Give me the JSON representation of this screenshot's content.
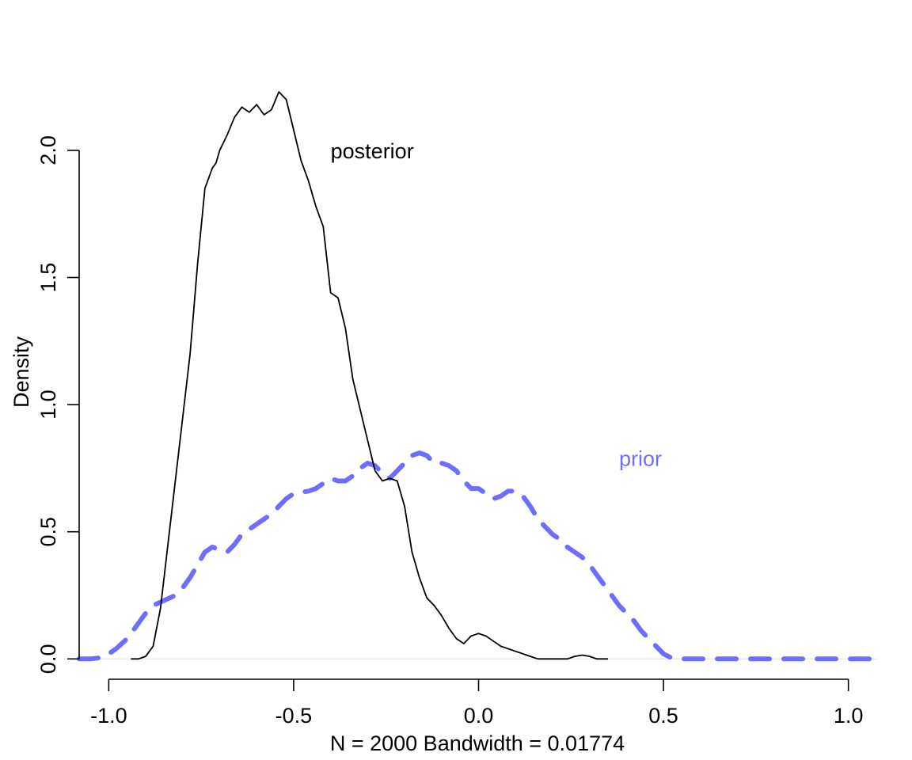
{
  "chart_data": {
    "type": "line",
    "title": "",
    "xlabel": "N = 2000   Bandwidth = 0.01774",
    "ylabel": "Density",
    "xlim": [
      -1.08,
      1.08
    ],
    "ylim": [
      -0.08,
      2.28
    ],
    "x_ticks": [
      -1.0,
      -0.5,
      0.0,
      0.5,
      1.0
    ],
    "x_tick_labels": [
      "-1.0",
      "-0.5",
      "0.0",
      "0.5",
      "1.0"
    ],
    "y_ticks": [
      0.0,
      0.5,
      1.0,
      1.5,
      2.0
    ],
    "y_tick_labels": [
      "0.0",
      "0.5",
      "1.0",
      "1.5",
      "2.0"
    ],
    "grid": false,
    "baseline": {
      "y": 0,
      "x": [
        -1.08,
        1.08
      ],
      "color": "#e6e6e6"
    },
    "series": [
      {
        "name": "posterior",
        "color": "#000000",
        "dashed": false,
        "label": {
          "text": "posterior",
          "x": -0.4,
          "y": 2.0,
          "anchor": "start"
        },
        "x": [
          -0.94,
          -0.92,
          -0.9,
          -0.88,
          -0.86,
          -0.84,
          -0.82,
          -0.8,
          -0.78,
          -0.76,
          -0.74,
          -0.72,
          -0.71,
          -0.7,
          -0.68,
          -0.66,
          -0.64,
          -0.62,
          -0.6,
          -0.58,
          -0.56,
          -0.54,
          -0.52,
          -0.5,
          -0.48,
          -0.46,
          -0.44,
          -0.42,
          -0.4,
          -0.38,
          -0.36,
          -0.34,
          -0.32,
          -0.3,
          -0.28,
          -0.26,
          -0.24,
          -0.22,
          -0.2,
          -0.18,
          -0.16,
          -0.14,
          -0.12,
          -0.1,
          -0.08,
          -0.06,
          -0.04,
          -0.02,
          0.0,
          0.02,
          0.04,
          0.06,
          0.08,
          0.1,
          0.12,
          0.14,
          0.16,
          0.18,
          0.2,
          0.22,
          0.24,
          0.26,
          0.28,
          0.3,
          0.32,
          0.35
        ],
        "y": [
          0.0,
          0.0,
          0.01,
          0.05,
          0.2,
          0.45,
          0.7,
          0.95,
          1.2,
          1.55,
          1.85,
          1.93,
          1.95,
          2.0,
          2.06,
          2.13,
          2.17,
          2.15,
          2.18,
          2.14,
          2.16,
          2.23,
          2.2,
          2.08,
          1.96,
          1.88,
          1.78,
          1.7,
          1.44,
          1.42,
          1.3,
          1.1,
          0.98,
          0.86,
          0.74,
          0.7,
          0.71,
          0.7,
          0.6,
          0.42,
          0.32,
          0.24,
          0.21,
          0.17,
          0.12,
          0.08,
          0.06,
          0.09,
          0.1,
          0.09,
          0.07,
          0.05,
          0.04,
          0.03,
          0.02,
          0.01,
          0.0,
          0.0,
          0.0,
          0.0,
          0.0,
          0.01,
          0.015,
          0.01,
          0.0,
          0.0
        ]
      },
      {
        "name": "prior",
        "color": "#6d6dff",
        "dashed": true,
        "label": {
          "text": "prior",
          "x": 0.38,
          "y": 0.79,
          "anchor": "start"
        },
        "x": [
          -1.08,
          -1.05,
          -1.02,
          -1.0,
          -0.98,
          -0.95,
          -0.92,
          -0.9,
          -0.88,
          -0.85,
          -0.82,
          -0.8,
          -0.78,
          -0.76,
          -0.74,
          -0.72,
          -0.7,
          -0.68,
          -0.66,
          -0.64,
          -0.62,
          -0.6,
          -0.58,
          -0.56,
          -0.54,
          -0.52,
          -0.5,
          -0.48,
          -0.46,
          -0.44,
          -0.42,
          -0.4,
          -0.38,
          -0.36,
          -0.34,
          -0.32,
          -0.3,
          -0.28,
          -0.26,
          -0.24,
          -0.22,
          -0.2,
          -0.18,
          -0.16,
          -0.14,
          -0.12,
          -0.1,
          -0.08,
          -0.06,
          -0.04,
          -0.02,
          0.0,
          0.02,
          0.04,
          0.06,
          0.08,
          0.1,
          0.12,
          0.14,
          0.16,
          0.18,
          0.2,
          0.22,
          0.24,
          0.26,
          0.28,
          0.3,
          0.32,
          0.34,
          0.36,
          0.38,
          0.4,
          0.42,
          0.44,
          0.46,
          0.48,
          0.5,
          0.52,
          0.54,
          0.56,
          0.58,
          0.6,
          0.62,
          0.64,
          0.66,
          0.68,
          0.7,
          0.72,
          0.74,
          0.76,
          0.78,
          0.8,
          0.82,
          0.84,
          0.86,
          0.88,
          0.9,
          0.92,
          0.94,
          0.96,
          0.98,
          1.0,
          1.02,
          1.04,
          1.06,
          1.08
        ],
        "y": [
          0.0,
          0.0,
          0.005,
          0.02,
          0.04,
          0.08,
          0.14,
          0.18,
          0.21,
          0.23,
          0.25,
          0.28,
          0.32,
          0.37,
          0.42,
          0.44,
          0.43,
          0.42,
          0.45,
          0.49,
          0.51,
          0.53,
          0.55,
          0.57,
          0.6,
          0.63,
          0.65,
          0.655,
          0.66,
          0.67,
          0.69,
          0.71,
          0.7,
          0.7,
          0.72,
          0.75,
          0.77,
          0.76,
          0.73,
          0.71,
          0.74,
          0.77,
          0.8,
          0.81,
          0.8,
          0.77,
          0.77,
          0.76,
          0.74,
          0.7,
          0.67,
          0.67,
          0.65,
          0.63,
          0.64,
          0.66,
          0.66,
          0.64,
          0.6,
          0.55,
          0.52,
          0.49,
          0.47,
          0.44,
          0.42,
          0.4,
          0.37,
          0.33,
          0.29,
          0.25,
          0.21,
          0.18,
          0.15,
          0.11,
          0.08,
          0.05,
          0.02,
          0.005,
          0.0,
          0.0,
          0.0,
          0.0,
          0.0,
          0.0,
          0.0,
          0.0,
          0.0,
          0.0,
          0.0,
          0.0,
          0.0,
          0.0,
          0.0,
          0.0,
          0.0,
          0.0,
          0.0,
          0.0,
          0.0,
          0.0,
          0.0,
          0.0,
          0.0,
          0.0,
          0.0,
          0.0
        ]
      }
    ]
  }
}
